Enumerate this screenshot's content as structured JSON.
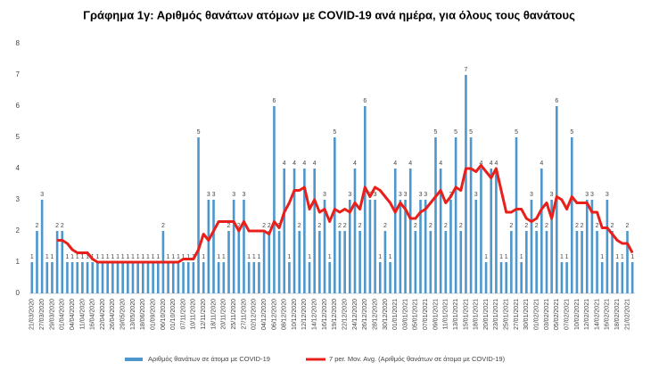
{
  "chart_data": {
    "type": "bar",
    "title": "Γράφημα 1γ: Αριθμός θανάτων ατόμων με COVID-19 ανά ημέρα, για όλους τους θανάτους",
    "categories": [
      "21/03/2020",
      null,
      "27/03/2020",
      null,
      "29/03/2020",
      null,
      "01/04/2020",
      null,
      "04/04/2020",
      null,
      "11/04/2020",
      null,
      "16/04/2020",
      null,
      "22/04/2020",
      null,
      "26/04/2020",
      null,
      "29/05/2020",
      null,
      "13/05/2020",
      null,
      "18/06/2020",
      null,
      "01/09/2020",
      null,
      "06/10/2020",
      null,
      "01/10/2020",
      null,
      "07/11/2020",
      null,
      "10/11/2020",
      null,
      "12/11/2020",
      null,
      "18/11/2020",
      null,
      "20/11/2020",
      null,
      "25/11/2020",
      null,
      "27/11/2020",
      null,
      "02/12/2020",
      null,
      "04/12/2020",
      null,
      "06/12/2020",
      null,
      "08/12/2020",
      null,
      "10/12/2020",
      null,
      "12/12/2020",
      null,
      "14/12/2020",
      null,
      "16/12/2020",
      null,
      "19/12/2020",
      null,
      "22/12/2020",
      null,
      "24/12/2020",
      null,
      "26/12/2020",
      null,
      "28/12/2020",
      null,
      "30/12/2020",
      null,
      "01/01/2021",
      null,
      "03/01/2021",
      null,
      "05/01/2021",
      null,
      "07/01/2021",
      null,
      "09/01/2021",
      null,
      "11/01/2021",
      null,
      "13/01/2021",
      null,
      "15/01/2021",
      null,
      "18/01/2021",
      null,
      "20/01/2021",
      null,
      "23/01/2021",
      null,
      "25/01/2021",
      null,
      "27/01/2021",
      null,
      "30/01/2021",
      null,
      "01/02/2021",
      null,
      "03/02/2021",
      null,
      "05/02/2021",
      null,
      "07/02/2021",
      null,
      "10/02/2021",
      null,
      "12/02/2021",
      null,
      "14/02/2021",
      null,
      "16/02/2021",
      null,
      "18/02/2021",
      null,
      "21/02/2021",
      null
    ],
    "series": [
      {
        "name": "Αριθμός θανάτων σε άτομα με COVID-19",
        "color": "#4e97cc",
        "type": "bar",
        "values": [
          1,
          2,
          3,
          1,
          1,
          2,
          2,
          1,
          1,
          1,
          1,
          1,
          1,
          1,
          1,
          1,
          1,
          1,
          1,
          1,
          1,
          1,
          1,
          1,
          1,
          1,
          2,
          1,
          1,
          1,
          1,
          1,
          1,
          5,
          1,
          3,
          3,
          1,
          1,
          2,
          3,
          2,
          3,
          1,
          1,
          1,
          2,
          2,
          6,
          2,
          4,
          1,
          4,
          2,
          4,
          1,
          4,
          2,
          3,
          1,
          5,
          2,
          2,
          3,
          4,
          2,
          6,
          3,
          3,
          1,
          2,
          1,
          4,
          3,
          3,
          4,
          2,
          3,
          3,
          2,
          5,
          4,
          2,
          3,
          5,
          2,
          7,
          5,
          3,
          4,
          1,
          4,
          4,
          1,
          1,
          2,
          5,
          1,
          2,
          3,
          2,
          4,
          2,
          3,
          6,
          1,
          1,
          5,
          2,
          2,
          3,
          3,
          2,
          1,
          3,
          2,
          1,
          1,
          2,
          1
        ]
      },
      {
        "name": "7 per. Mov. Avg. (Αριθμός θανάτων σε άτομα με COVID-19)",
        "color": "#e8201b",
        "type": "line",
        "values": [
          null,
          null,
          null,
          null,
          null,
          1.7,
          1.7,
          1.6,
          1.4,
          1.3,
          1.3,
          1.3,
          1.1,
          1.0,
          1.0,
          1.0,
          1.0,
          1.0,
          1.0,
          1.0,
          1.0,
          1.0,
          1.0,
          1.0,
          1.0,
          1.0,
          1.0,
          1.0,
          1.0,
          1.0,
          1.1,
          1.1,
          1.1,
          1.4,
          1.9,
          1.7,
          2.0,
          2.3,
          2.3,
          2.3,
          2.3,
          2.0,
          2.3,
          2.0,
          2.0,
          2.0,
          2.0,
          1.9,
          2.3,
          2.1,
          2.6,
          2.9,
          3.3,
          3.3,
          3.4,
          2.7,
          3.0,
          2.6,
          2.7,
          2.3,
          2.7,
          2.6,
          2.7,
          2.6,
          2.9,
          2.7,
          3.4,
          3.1,
          3.4,
          3.3,
          3.1,
          2.9,
          2.6,
          2.9,
          2.7,
          2.4,
          2.4,
          2.6,
          2.7,
          2.9,
          3.1,
          3.3,
          2.9,
          3.1,
          3.4,
          3.3,
          4.0,
          4.0,
          3.9,
          4.1,
          3.9,
          3.7,
          4.0,
          3.3,
          2.6,
          2.6,
          2.7,
          2.7,
          2.4,
          2.3,
          2.4,
          2.7,
          2.9,
          2.4,
          3.1,
          3.0,
          2.7,
          3.1,
          2.9,
          2.9,
          2.9,
          2.6,
          2.6,
          2.1,
          2.1,
          1.9,
          1.7,
          1.6,
          1.6,
          1.3
        ]
      }
    ],
    "ylim": [
      0,
      8
    ],
    "yticks": [
      0,
      1,
      2,
      3,
      4,
      5,
      6,
      7,
      8
    ],
    "legend": "bottom"
  }
}
